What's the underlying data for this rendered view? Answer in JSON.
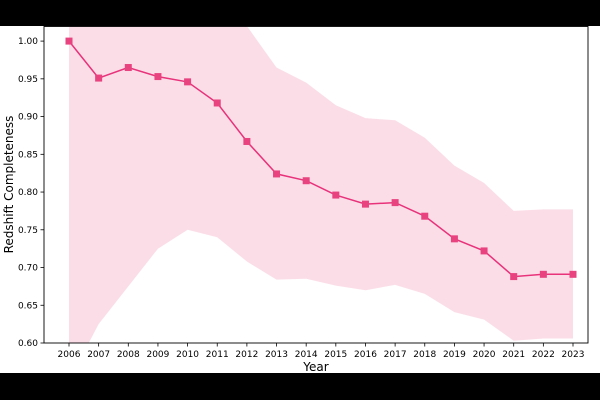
{
  "chart_data": {
    "type": "line",
    "title": "",
    "xlabel": "Year",
    "ylabel": "Redshift Completeness",
    "ylim": [
      0.6,
      1.02
    ],
    "yticks": [
      "0.60",
      "0.65",
      "0.70",
      "0.75",
      "0.80",
      "0.85",
      "0.90",
      "0.95",
      "1.00"
    ],
    "grid": false,
    "legend": "none",
    "categories": [
      "2006",
      "2007",
      "2008",
      "2009",
      "2010",
      "2011",
      "2012",
      "2013",
      "2014",
      "2015",
      "2016",
      "2017",
      "2018",
      "2019",
      "2020",
      "2021",
      "2022",
      "2023"
    ],
    "series": [
      {
        "values": [
          1.0,
          0.951,
          0.965,
          0.953,
          0.946,
          0.918,
          0.867,
          0.824,
          0.815,
          0.796,
          0.784,
          0.786,
          0.768,
          0.738,
          0.722,
          0.688,
          0.691,
          0.691
        ],
        "upper": [
          1.05,
          1.05,
          1.05,
          1.05,
          1.05,
          1.05,
          1.02,
          0.965,
          0.945,
          0.915,
          0.898,
          0.895,
          0.872,
          0.835,
          0.812,
          0.775,
          0.777,
          0.777
        ],
        "lower": [
          0.55,
          0.625,
          0.675,
          0.725,
          0.75,
          0.74,
          0.708,
          0.684,
          0.685,
          0.676,
          0.67,
          0.677,
          0.665,
          0.641,
          0.631,
          0.603,
          0.606,
          0.606
        ]
      }
    ],
    "colors": {
      "line": "#e8327a",
      "marker": "#e8437f",
      "band": "#f9c6d8"
    }
  }
}
